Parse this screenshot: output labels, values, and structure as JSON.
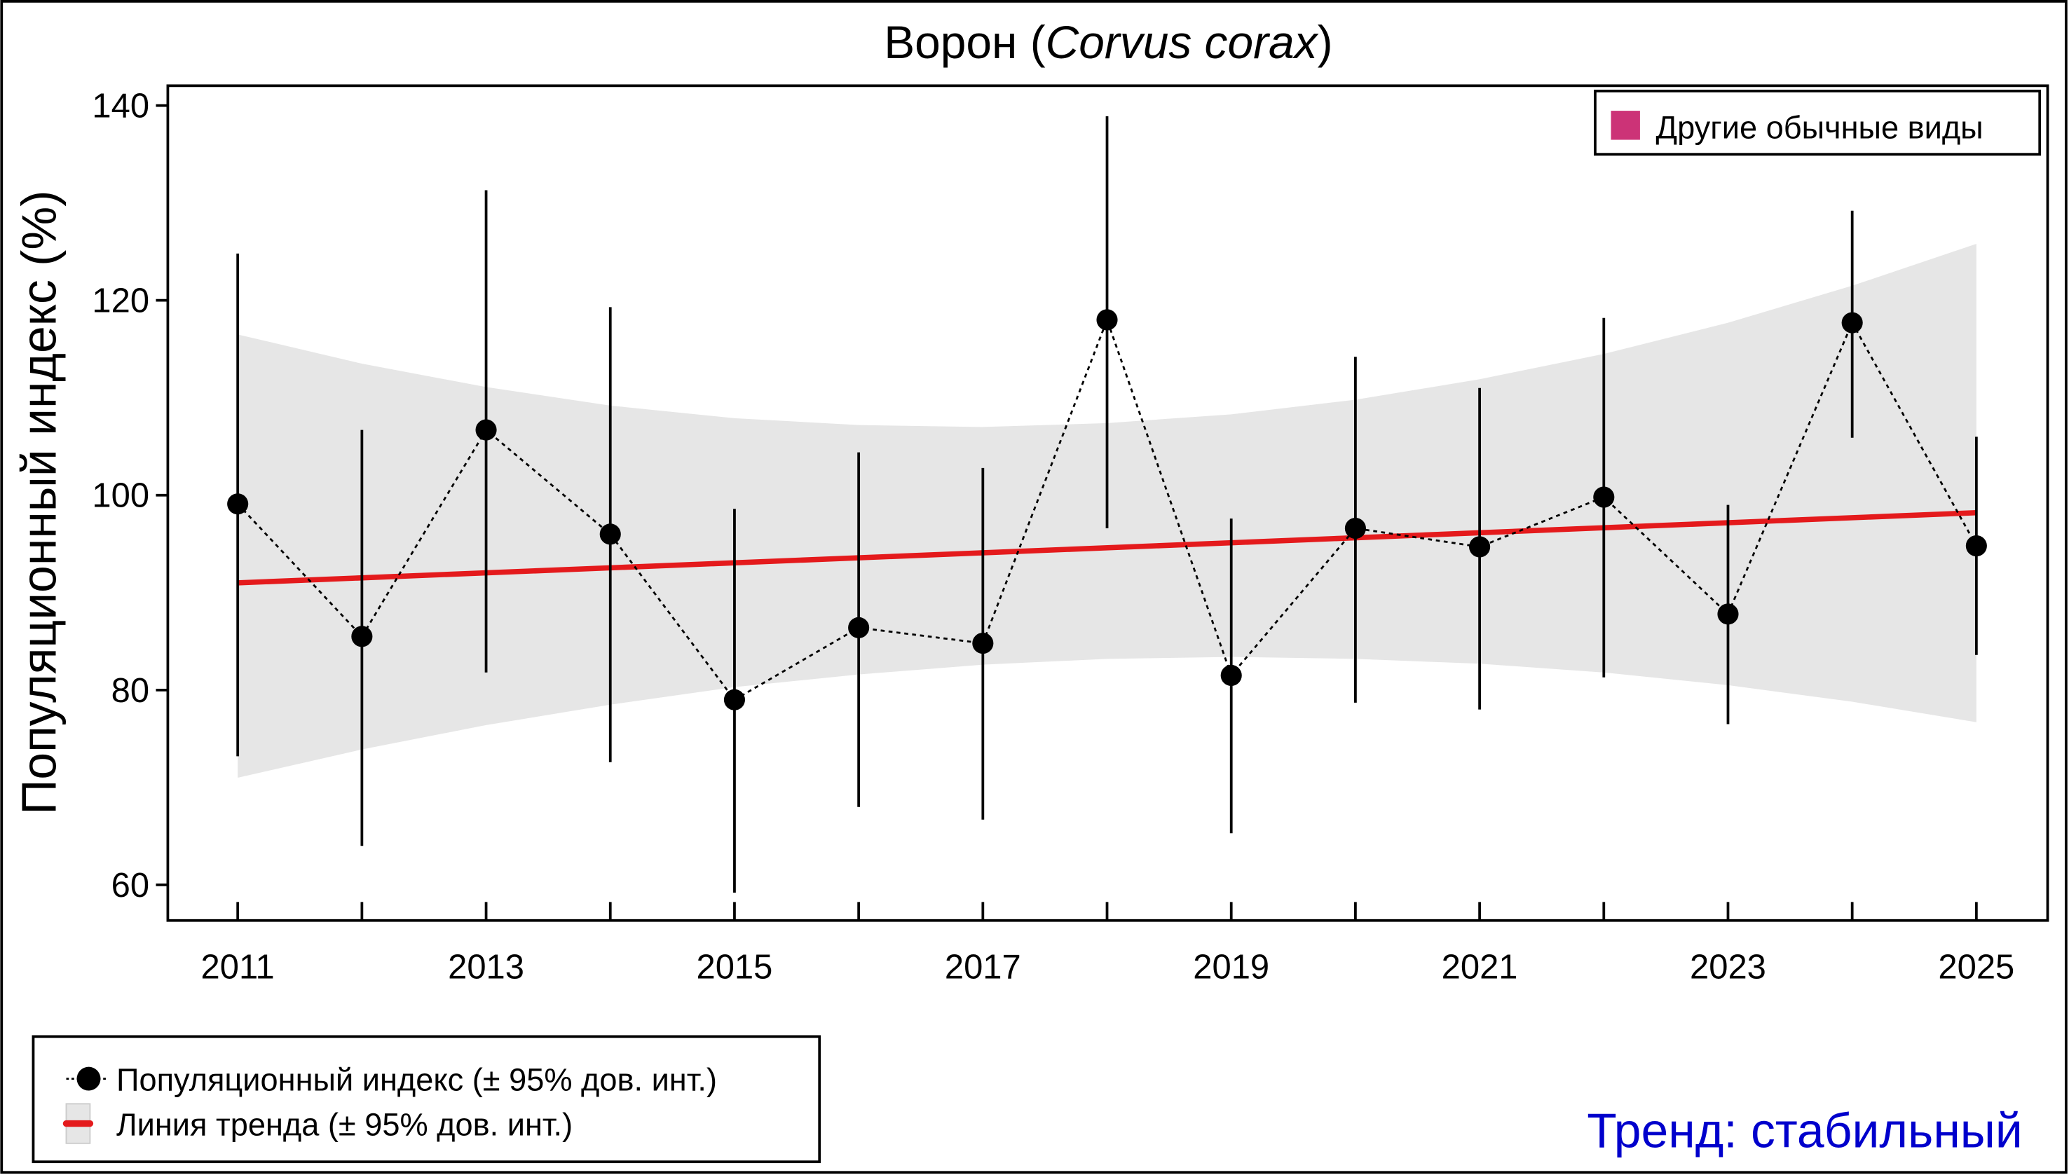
{
  "chart_data": {
    "type": "line",
    "title_plain": "Ворон (",
    "title_italic": "Corvus corax",
    "title_close": ")",
    "ylabel": "Популяционный индекс (%)",
    "xlabel": "",
    "ylim": [
      56,
      142
    ],
    "xlim": [
      2009.5,
      2025.6
    ],
    "yticks": [
      60,
      80,
      100,
      120,
      140
    ],
    "xticks": [
      2011,
      2013,
      2015,
      2017,
      2019,
      2021,
      2023,
      2025
    ],
    "grid": false,
    "x": [
      2011,
      2012,
      2013,
      2014,
      2015,
      2016,
      2017,
      2018,
      2019,
      2020,
      2021,
      2022,
      2023,
      2024,
      2025
    ],
    "index": [
      99.1,
      85.5,
      106.7,
      96.0,
      79.0,
      86.4,
      84.8,
      118.0,
      81.5,
      96.6,
      94.7,
      99.8,
      87.8,
      117.7,
      94.8
    ],
    "ci_upper": [
      124.8,
      106.7,
      131.3,
      119.3,
      98.6,
      104.4,
      102.8,
      138.9,
      97.6,
      114.2,
      111.0,
      118.2,
      99.0,
      129.2,
      106.0
    ],
    "ci_lower": [
      73.2,
      64.0,
      81.8,
      72.6,
      59.2,
      68.0,
      66.7,
      96.6,
      65.3,
      78.7,
      78.0,
      81.3,
      76.5,
      105.9,
      83.6
    ],
    "trend": {
      "start": [
        2011,
        91.0
      ],
      "end": [
        2025,
        98.2
      ]
    },
    "trend_band_upper": [
      116.5,
      113.5,
      111.1,
      109.2,
      107.9,
      107.2,
      107.0,
      107.4,
      108.3,
      109.8,
      111.9,
      114.5,
      117.7,
      121.5,
      125.8
    ],
    "trend_band_lower": [
      71.0,
      73.9,
      76.4,
      78.5,
      80.3,
      81.6,
      82.6,
      83.2,
      83.4,
      83.2,
      82.7,
      81.8,
      80.5,
      78.8,
      76.7
    ],
    "legend_top": {
      "label": "Другие обычные виды",
      "color": "#cc3377",
      "placement": "top-right"
    },
    "legend_bottom": {
      "index_label": "Популяционный индекс (± 95% дов. инт.)",
      "trend_label": "Линия тренда (± 95% дов. инт.)",
      "placement": "bottom-left"
    },
    "trend_text": "Тренд: стабильный",
    "colors": {
      "trend": "#e41a1c",
      "band": "#e6e6e6",
      "points": "#000000",
      "trend_text": "#0000cc"
    }
  }
}
